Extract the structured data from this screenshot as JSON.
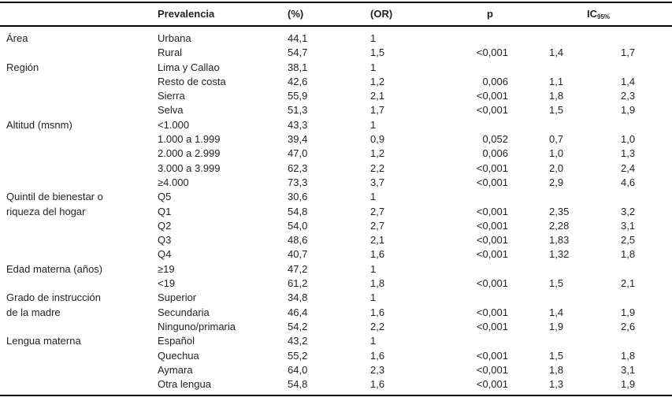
{
  "colors": {
    "background": "#ffffff",
    "text": "#231f20",
    "rule": "#000000"
  },
  "table": {
    "headers": {
      "category": "",
      "prevalencia": "Prevalencia",
      "pct": "(%)",
      "or": "(OR)",
      "p": "p",
      "ic_base": "IC",
      "ic_sub": "95%"
    },
    "rows": [
      {
        "category": "Área",
        "label": "Urbana",
        "pct": "44,1",
        "or": "1",
        "p": "",
        "ic_low": "",
        "ic_high": ""
      },
      {
        "category": "",
        "label": "Rural",
        "pct": "54,7",
        "or": "1,5",
        "p": "<0,001",
        "ic_low": "1,4",
        "ic_high": "1,7"
      },
      {
        "category": "Región",
        "label": "Lima y Callao",
        "pct": "38,1",
        "or": "1",
        "p": "",
        "ic_low": "",
        "ic_high": ""
      },
      {
        "category": "",
        "label": "Resto de costa",
        "pct": "42,6",
        "or": "1,2",
        "p": "0,006",
        "ic_low": "1,1",
        "ic_high": "1,4"
      },
      {
        "category": "",
        "label": "Sierra",
        "pct": "55,9",
        "or": "2,1",
        "p": "<0,001",
        "ic_low": "1,8",
        "ic_high": "2,3"
      },
      {
        "category": "",
        "label": "Selva",
        "pct": "51,3",
        "or": "1,7",
        "p": "<0,001",
        "ic_low": "1,5",
        "ic_high": "1,9"
      },
      {
        "category": "Altitud (msnm)",
        "label": "<1.000",
        "pct": "43,3",
        "or": "1",
        "p": "",
        "ic_low": "",
        "ic_high": ""
      },
      {
        "category": "",
        "label": "1.000 a 1.999",
        "pct": "39,4",
        "or": "0,9",
        "p": "0,052",
        "ic_low": "0,7",
        "ic_high": "1,0"
      },
      {
        "category": "",
        "label": "2.000 a 2.999",
        "pct": "47,0",
        "or": "1,2",
        "p": "0,006",
        "ic_low": "1,0",
        "ic_high": "1,3"
      },
      {
        "category": "",
        "label": "3.000 a 3.999",
        "pct": "62,3",
        "or": "2,2",
        "p": "<0,001",
        "ic_low": "2,0",
        "ic_high": "2,4"
      },
      {
        "category": "",
        "label": "≥4.000",
        "pct": "73,3",
        "or": "3,7",
        "p": "<0,001",
        "ic_low": "2,9",
        "ic_high": "4,6"
      },
      {
        "category": "Quintil de bienestar o",
        "label": "Q5",
        "pct": "30,6",
        "or": "1",
        "p": "",
        "ic_low": "",
        "ic_high": ""
      },
      {
        "category": "riqueza del hogar",
        "label": "Q1",
        "pct": "54,8",
        "or": "2,7",
        "p": "<0,001",
        "ic_low": "2,35",
        "ic_high": "3,2"
      },
      {
        "category": "",
        "label": "Q2",
        "pct": "54,0",
        "or": "2,7",
        "p": "<0,001",
        "ic_low": "2,28",
        "ic_high": "3,1"
      },
      {
        "category": "",
        "label": "Q3",
        "pct": "48,6",
        "or": "2,1",
        "p": "<0,001",
        "ic_low": "1,83",
        "ic_high": "2,5"
      },
      {
        "category": "",
        "label": "Q4",
        "pct": "40,7",
        "or": "1,6",
        "p": "<0,001",
        "ic_low": "1,32",
        "ic_high": "1,8"
      },
      {
        "category": "Edad materna (años)",
        "label": "≥19",
        "pct": "47,2",
        "or": "1",
        "p": "",
        "ic_low": "",
        "ic_high": ""
      },
      {
        "category": "",
        "label": "<19",
        "pct": "61,2",
        "or": "1,8",
        "p": "<0,001",
        "ic_low": "1,5",
        "ic_high": "2,1"
      },
      {
        "category": "Grado de instrucción",
        "label": "Superior",
        "pct": "34,8",
        "or": "1",
        "p": "",
        "ic_low": "",
        "ic_high": ""
      },
      {
        "category": "de la madre",
        "label": "Secundaria",
        "pct": "46,4",
        "or": "1,6",
        "p": "<0,001",
        "ic_low": "1,4",
        "ic_high": "1,9"
      },
      {
        "category": "",
        "label": "Ninguno/primaria",
        "pct": "54,2",
        "or": "2,2",
        "p": "<0,001",
        "ic_low": "1,9",
        "ic_high": "2,6"
      },
      {
        "category": "Lengua materna",
        "label": "Español",
        "pct": "43,2",
        "or": "1",
        "p": "",
        "ic_low": "",
        "ic_high": ""
      },
      {
        "category": "",
        "label": "Quechua",
        "pct": "55,2",
        "or": "1,6",
        "p": "<0,001",
        "ic_low": "1,5",
        "ic_high": "1,8"
      },
      {
        "category": "",
        "label": "Aymara",
        "pct": "64,0",
        "or": "2,3",
        "p": "<0,001",
        "ic_low": "1,8",
        "ic_high": "3,1"
      },
      {
        "category": "",
        "label": "Otra lengua",
        "pct": "54,8",
        "or": "1,6",
        "p": "<0,001",
        "ic_low": "1,3",
        "ic_high": "1,9"
      }
    ]
  }
}
